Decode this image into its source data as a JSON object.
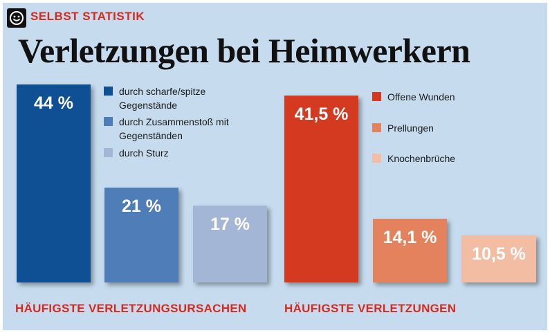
{
  "header": {
    "kicker": "SELBST STATISTIK",
    "title": "Verletzungen bei Heimwerkern"
  },
  "colors": {
    "background": "#c6dcee",
    "accent_red": "#d7291c"
  },
  "chart_data": [
    {
      "type": "bar",
      "title": "HÄUFIGSTE VERLETZUNGSURSACHEN",
      "unit": "%",
      "categories": [
        "durch scharfe/spitze Gegenstände",
        "durch Zusammenstoß mit Gegenständen",
        "durch Sturz"
      ],
      "legend": [
        {
          "label": "durch scharfe/spitze Gegenstände"
        },
        {
          "label": "durch Zusammenstoß mit Gegenständen"
        },
        {
          "label": "durch Sturz"
        }
      ],
      "values": [
        44,
        21,
        17
      ],
      "value_labels": [
        "44 %",
        "21 %",
        "17 %"
      ],
      "colors": [
        "#0f4f93",
        "#4f7db8",
        "#a3b6d6"
      ],
      "ylim": [
        0,
        44
      ],
      "grid": false
    },
    {
      "type": "bar",
      "title": "HÄUFIGSTE VERLETZUNGEN",
      "unit": "%",
      "categories": [
        "Offene Wunden",
        "Prellungen",
        "Knochenbrüche"
      ],
      "legend": [
        {
          "label": "Offene Wunden"
        },
        {
          "label": "Prellungen"
        },
        {
          "label": "Knochenbrüche"
        }
      ],
      "values": [
        41.5,
        14.1,
        10.5
      ],
      "value_labels": [
        "41,5 %",
        "14,1 %",
        "10,5 %"
      ],
      "colors": [
        "#d33a1f",
        "#e4825e",
        "#f3bda3"
      ],
      "ylim": [
        0,
        44
      ],
      "grid": false
    }
  ]
}
